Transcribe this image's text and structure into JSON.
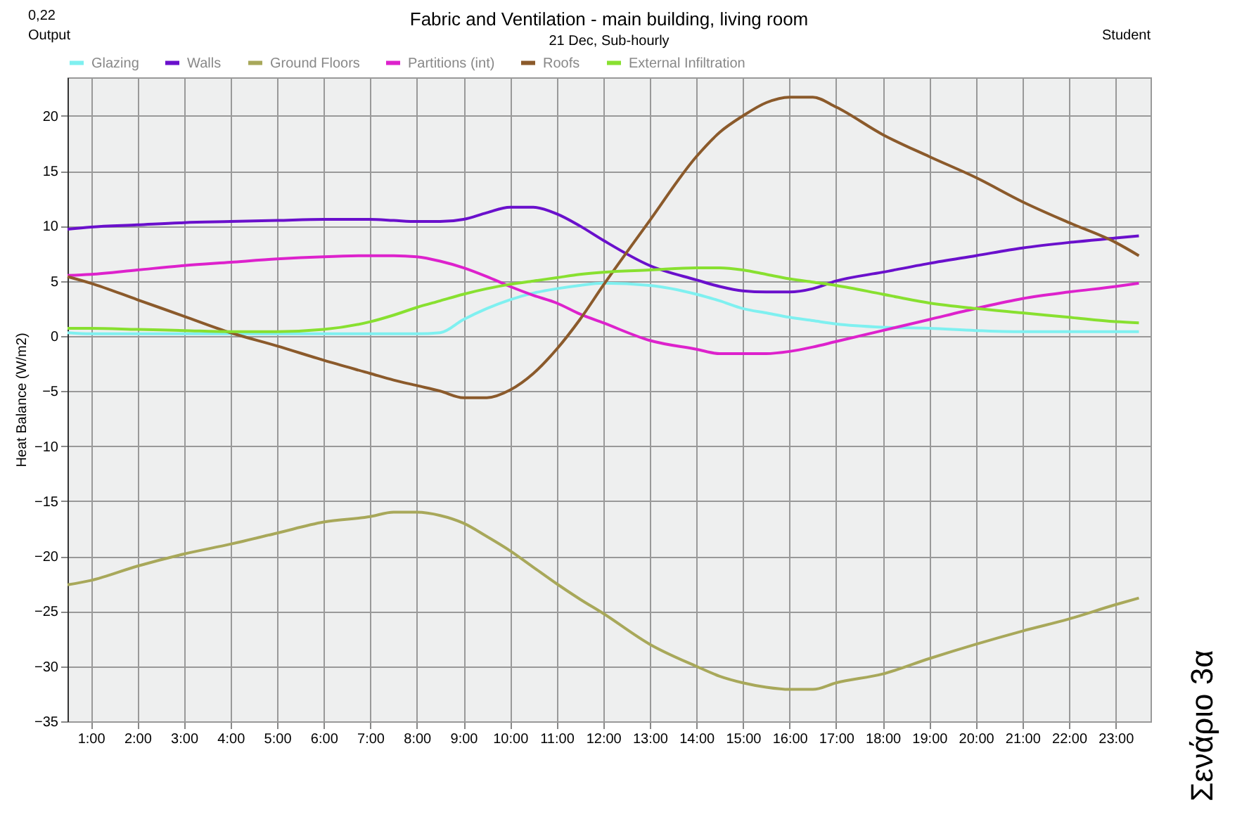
{
  "chart_data": {
    "type": "line",
    "title": "Fabric and Ventilation - main building, living room",
    "subtitle": "21 Dec, Sub-hourly",
    "ylabel": "Heat Balance (W/m2)",
    "annotations": [
      "0,22",
      "Output",
      "Student",
      "Σενάριο 3α"
    ],
    "x": [
      0.5,
      1,
      2,
      3,
      4,
      5,
      6,
      7,
      7.5,
      8,
      8.5,
      9,
      9.5,
      10,
      10.5,
      11,
      11.5,
      12,
      13,
      14,
      14.5,
      15,
      15.5,
      16,
      16.5,
      17,
      18,
      19,
      20,
      21,
      22,
      23,
      23.5
    ],
    "series": [
      {
        "name": "Glazing",
        "color": "#7ff0f0",
        "values": [
          0.3,
          0.2,
          0.2,
          0.2,
          0.2,
          0.2,
          0.2,
          0.2,
          0.2,
          0.2,
          0.3,
          1.5,
          2.5,
          3.3,
          3.9,
          4.3,
          4.6,
          4.8,
          4.6,
          3.8,
          3.2,
          2.5,
          2.1,
          1.7,
          1.4,
          1.1,
          0.8,
          0.7,
          0.5,
          0.4,
          0.4,
          0.4,
          0.4
        ]
      },
      {
        "name": "Walls",
        "color": "#6a10cc",
        "values": [
          9.7,
          9.9,
          10.1,
          10.3,
          10.4,
          10.5,
          10.6,
          10.6,
          10.5,
          10.4,
          10.4,
          10.6,
          11.2,
          11.7,
          11.7,
          11.1,
          10.0,
          8.7,
          6.4,
          5.1,
          4.5,
          4.1,
          4.0,
          4.0,
          4.3,
          5.0,
          5.8,
          6.6,
          7.3,
          8.0,
          8.5,
          8.9,
          9.1
        ]
      },
      {
        "name": "Ground Floors",
        "color": "#a8a85a",
        "values": [
          -22.6,
          -22.2,
          -20.9,
          -19.8,
          -18.9,
          -17.9,
          -16.9,
          -16.4,
          -16.0,
          -16.0,
          -16.3,
          -17.0,
          -18.2,
          -19.5,
          -21.0,
          -22.5,
          -23.9,
          -25.2,
          -28.0,
          -30.0,
          -30.9,
          -31.5,
          -31.9,
          -32.1,
          -32.1,
          -31.5,
          -30.7,
          -29.3,
          -28.0,
          -26.8,
          -25.7,
          -24.4,
          -23.8
        ]
      },
      {
        "name": "Partitions (int)",
        "color": "#dd22cc",
        "values": [
          5.5,
          5.6,
          6.0,
          6.4,
          6.7,
          7.0,
          7.2,
          7.3,
          7.3,
          7.2,
          6.8,
          6.2,
          5.4,
          4.5,
          3.7,
          3.0,
          2.0,
          1.2,
          -0.4,
          -1.2,
          -1.6,
          -1.6,
          -1.6,
          -1.4,
          -1.0,
          -0.5,
          0.5,
          1.5,
          2.5,
          3.4,
          4.0,
          4.5,
          4.8
        ]
      },
      {
        "name": "Roofs",
        "color": "#8b5a2b",
        "values": [
          5.4,
          4.8,
          3.3,
          1.8,
          0.3,
          -0.9,
          -2.2,
          -3.4,
          -4.0,
          -4.5,
          -5.0,
          -5.6,
          -5.6,
          -4.9,
          -3.4,
          -1.2,
          1.5,
          4.6,
          10.5,
          16.3,
          18.5,
          20.0,
          21.2,
          21.7,
          21.7,
          20.8,
          18.3,
          16.3,
          14.4,
          12.2,
          10.3,
          8.5,
          7.3
        ]
      },
      {
        "name": "External Infiltration",
        "color": "#88e030",
        "values": [
          0.7,
          0.7,
          0.6,
          0.5,
          0.4,
          0.4,
          0.6,
          1.3,
          1.9,
          2.6,
          3.2,
          3.8,
          4.3,
          4.7,
          5.0,
          5.3,
          5.6,
          5.8,
          6.0,
          6.2,
          6.2,
          6.0,
          5.6,
          5.2,
          4.9,
          4.6,
          3.8,
          3.0,
          2.5,
          2.1,
          1.7,
          1.3,
          1.2
        ]
      }
    ],
    "xlim": [
      0.5,
      23.75
    ],
    "xticks": [
      {
        "value": 1,
        "label": "1:00"
      },
      {
        "value": 2,
        "label": "2:00"
      },
      {
        "value": 3,
        "label": "3:00"
      },
      {
        "value": 4,
        "label": "4:00"
      },
      {
        "value": 5,
        "label": "5:00"
      },
      {
        "value": 6,
        "label": "6:00"
      },
      {
        "value": 7,
        "label": "7:00"
      },
      {
        "value": 8,
        "label": "8:00"
      },
      {
        "value": 9,
        "label": "9:00"
      },
      {
        "value": 10,
        "label": "10:00"
      },
      {
        "value": 11,
        "label": "11:00"
      },
      {
        "value": 12,
        "label": "12:00"
      },
      {
        "value": 13,
        "label": "13:00"
      },
      {
        "value": 14,
        "label": "14:00"
      },
      {
        "value": 15,
        "label": "15:00"
      },
      {
        "value": 16,
        "label": "16:00"
      },
      {
        "value": 17,
        "label": "17:00"
      },
      {
        "value": 18,
        "label": "18:00"
      },
      {
        "value": 19,
        "label": "19:00"
      },
      {
        "value": 20,
        "label": "20:00"
      },
      {
        "value": 21,
        "label": "21:00"
      },
      {
        "value": 22,
        "label": "22:00"
      },
      {
        "value": 23,
        "label": "23:00"
      }
    ],
    "ylim": [
      -35,
      23.5
    ],
    "yticks": [
      -35,
      -30,
      -25,
      -20,
      -15,
      -10,
      -5,
      0,
      5,
      10,
      15,
      20
    ],
    "grid": true,
    "legend": "top",
    "marker": "none",
    "line_style": "solid"
  }
}
